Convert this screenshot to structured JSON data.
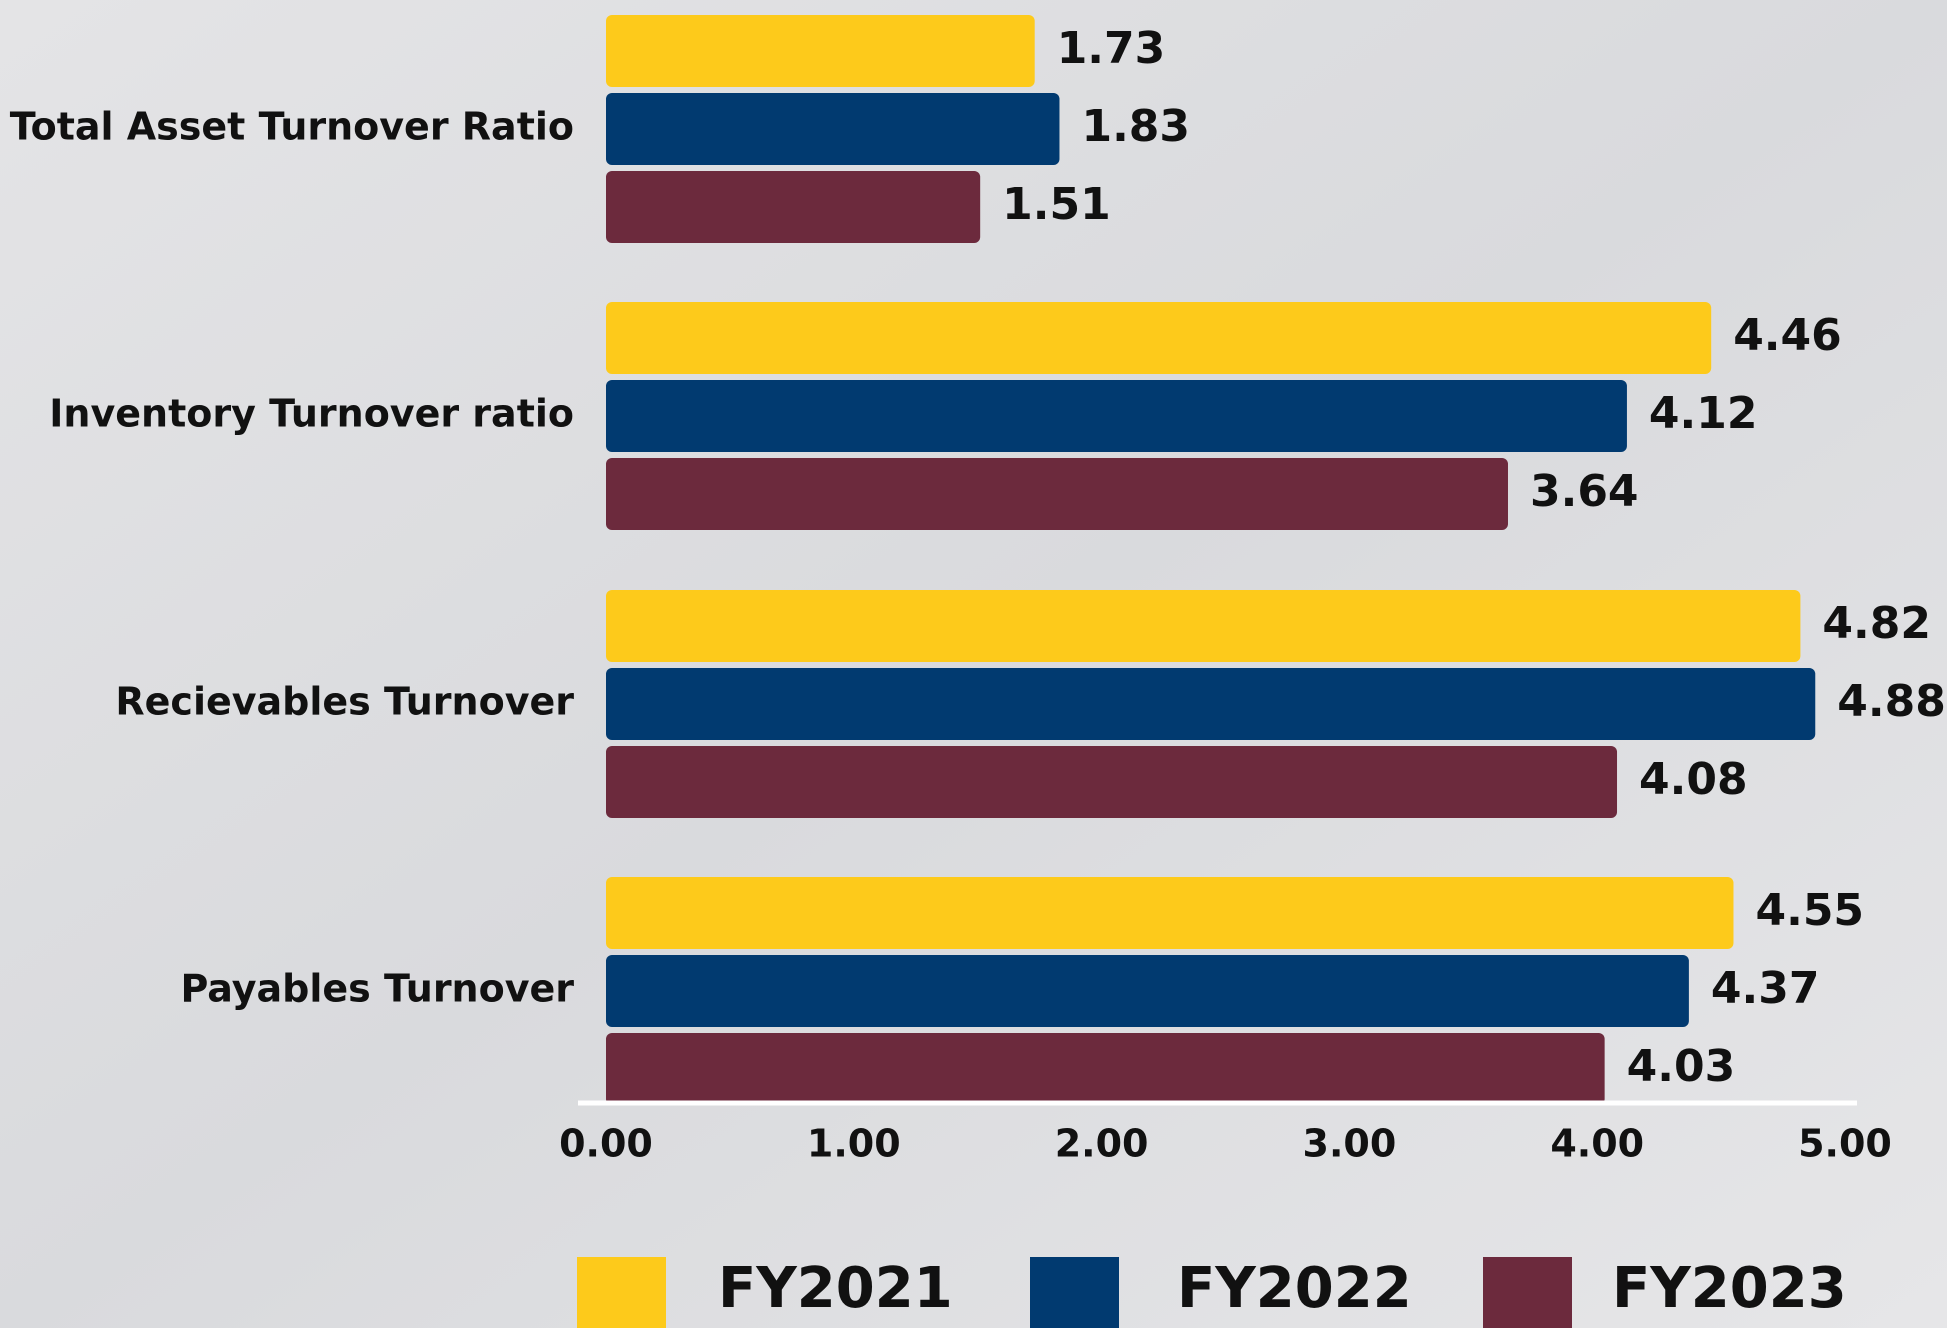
{
  "chart_data": {
    "type": "barh",
    "categories": [
      "Total Asset Turnover Ratio",
      "Inventory Turnover ratio",
      "Recievables Turnover",
      "Payables Turnover"
    ],
    "series": [
      {
        "name": "FY2021",
        "color": "#fdca1b",
        "values": [
          1.73,
          4.46,
          4.82,
          4.55
        ]
      },
      {
        "name": "FY2022",
        "color": "#013a70",
        "values": [
          1.83,
          4.12,
          4.88,
          4.37
        ]
      },
      {
        "name": "FY2023",
        "color": "#6c2a3d",
        "values": [
          1.51,
          3.64,
          4.08,
          4.03
        ]
      }
    ],
    "xlim": [
      0,
      5
    ],
    "xticks": [
      {
        "value": 0,
        "label": "0.00"
      },
      {
        "value": 1,
        "label": "1.00"
      },
      {
        "value": 2,
        "label": "2.00"
      },
      {
        "value": 3,
        "label": "3.00"
      },
      {
        "value": 4,
        "label": "4.00"
      },
      {
        "value": 5,
        "label": "5.00"
      }
    ],
    "legend": "bottom"
  }
}
